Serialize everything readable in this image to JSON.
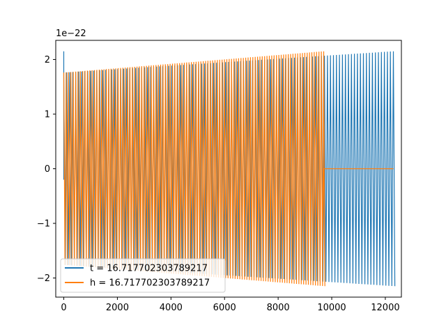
{
  "chart_data": {
    "type": "line",
    "title": "",
    "xlabel": "",
    "ylabel": "",
    "y_offset_label": "1e−22",
    "xlim": [
      -300,
      12600
    ],
    "ylim": [
      -2.35,
      2.35
    ],
    "x_ticks": [
      0,
      2000,
      4000,
      6000,
      8000,
      10000,
      12000
    ],
    "x_tick_labels": [
      "0",
      "2000",
      "4000",
      "6000",
      "8000",
      "10000",
      "12000"
    ],
    "y_ticks": [
      -2,
      -1,
      0,
      1,
      2
    ],
    "y_tick_labels": [
      "−2",
      "−1",
      "0",
      "1",
      "2"
    ],
    "grid": false,
    "legend_position": "lower-left",
    "series": [
      {
        "name": "t = 16.717702303789217",
        "color": "#1f77b4",
        "envelope_x": [
          0,
          12300
        ],
        "envelope_amplitude": [
          1.76,
          2.15
        ],
        "x_end": 12300,
        "initial_spike": 2.15
      },
      {
        "name": "h = 16.717702303789217",
        "color": "#ff7f0e",
        "envelope_x": [
          0,
          9700
        ],
        "envelope_amplitude": [
          1.76,
          2.15
        ],
        "x_end": 9700,
        "flat_x_end": 12300,
        "flat_value": 0
      }
    ]
  }
}
